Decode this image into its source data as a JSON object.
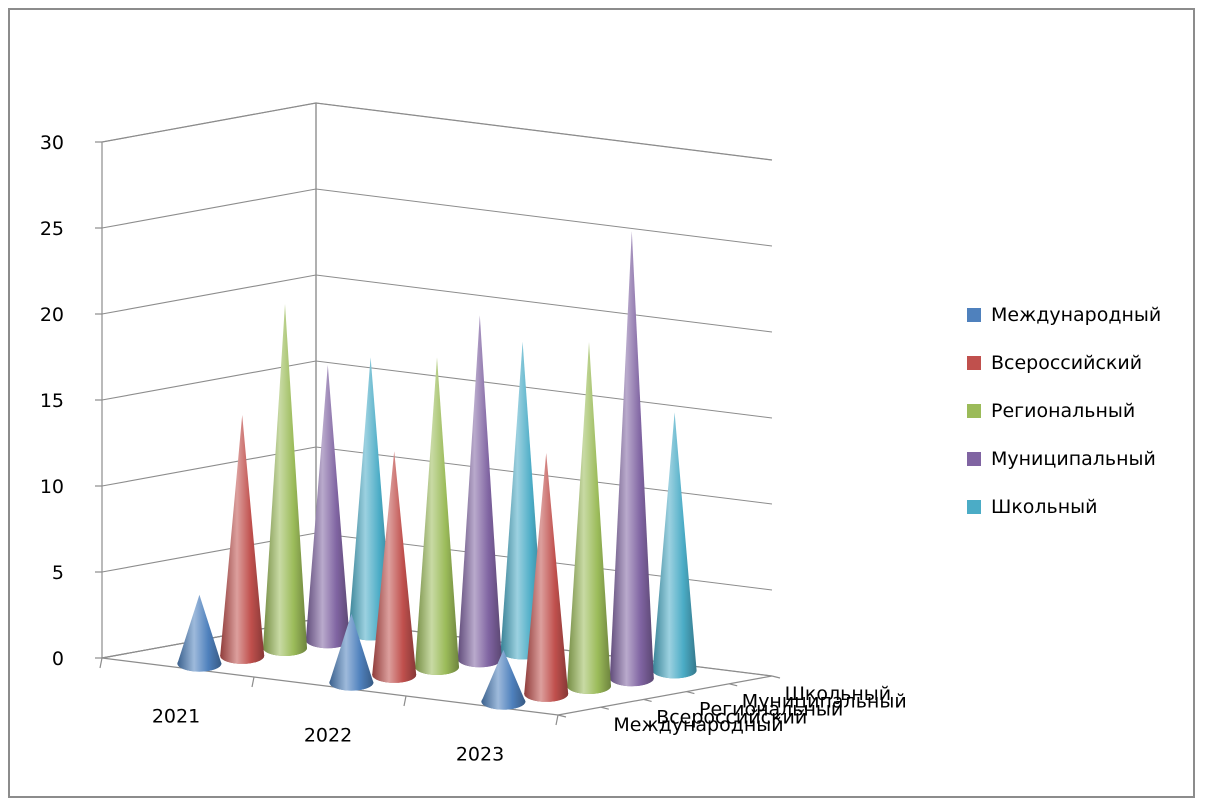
{
  "chart_data": {
    "type": "cone3d",
    "title": "",
    "xlabel": "",
    "ylabel": "",
    "categories": [
      "2021",
      "2022",
      "2023"
    ],
    "depth_categories": [
      "Международный",
      "Всероссийский",
      "Региональный",
      "Муниципальный",
      "Школьный"
    ],
    "series": [
      {
        "name": "Международный",
        "color": "#4F81BD",
        "values": [
          4,
          4,
          3
        ]
      },
      {
        "name": "Всероссийский",
        "color": "#C0504D",
        "values": [
          14,
          13,
          14
        ]
      },
      {
        "name": "Региональный",
        "color": "#9BBB59",
        "values": [
          20,
          18,
          20
        ]
      },
      {
        "name": "Муниципальный",
        "color": "#8064A2",
        "values": [
          16,
          20,
          26
        ]
      },
      {
        "name": "Школьный",
        "color": "#4BACC6",
        "values": [
          16,
          18,
          15
        ]
      }
    ],
    "yticks": [
      "0",
      "5",
      "10",
      "15",
      "20",
      "25",
      "30"
    ],
    "ylim": [
      0,
      30
    ],
    "grid": true,
    "legend": "right"
  }
}
